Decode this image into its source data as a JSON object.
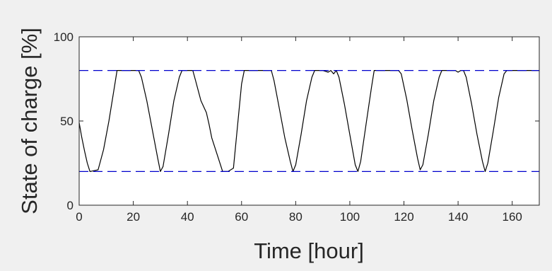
{
  "chart_data": {
    "type": "line",
    "title": "",
    "xlabel": "Time [hour]",
    "ylabel": "State of charge [%]",
    "xlim": [
      0,
      170
    ],
    "ylim": [
      0,
      100
    ],
    "x_ticks": [
      0,
      20,
      40,
      60,
      80,
      100,
      120,
      140,
      160
    ],
    "y_ticks": [
      0,
      50,
      100
    ],
    "grid": false,
    "series": [
      {
        "name": "",
        "color": "#000000",
        "style": "solid",
        "x": [
          0,
          1,
          2,
          3,
          4,
          7,
          9,
          11,
          13,
          14,
          22,
          23,
          25,
          27,
          29,
          30,
          31,
          33,
          35,
          37,
          38,
          42,
          43,
          45,
          47,
          48,
          49,
          51,
          53,
          55,
          57,
          60,
          61,
          71,
          72,
          74,
          76,
          78,
          79,
          80,
          82,
          84,
          86,
          87,
          90,
          92,
          93,
          94,
          95,
          96,
          98,
          100,
          102,
          103,
          104,
          106,
          108,
          109,
          118,
          119,
          121,
          123,
          125,
          126,
          127,
          129,
          131,
          133,
          134,
          139,
          140,
          141,
          142,
          143,
          145,
          147,
          149,
          150,
          151,
          153,
          155,
          157,
          158,
          170
        ],
        "y": [
          49,
          40,
          32,
          25,
          20,
          21,
          33,
          50,
          70,
          80,
          80,
          76,
          62,
          45,
          28,
          20,
          23,
          42,
          62,
          76,
          80,
          80,
          74,
          62,
          55,
          48,
          40,
          30,
          20,
          20,
          22,
          72,
          80,
          80,
          74,
          57,
          40,
          26,
          20,
          24,
          42,
          62,
          76,
          80,
          80,
          79,
          80,
          78,
          80,
          76,
          60,
          42,
          24,
          20,
          26,
          48,
          70,
          80,
          80,
          78,
          63,
          45,
          28,
          21,
          24,
          42,
          62,
          76,
          80,
          80,
          79,
          80,
          80,
          76,
          60,
          42,
          26,
          20,
          25,
          44,
          64,
          78,
          80,
          80
        ]
      },
      {
        "name": "",
        "color": "#0000cc",
        "style": "dashed",
        "x": [
          0,
          170
        ],
        "y": [
          80,
          80
        ]
      },
      {
        "name": "",
        "color": "#0000cc",
        "style": "dashed",
        "x": [
          0,
          170
        ],
        "y": [
          20,
          20
        ]
      }
    ]
  }
}
